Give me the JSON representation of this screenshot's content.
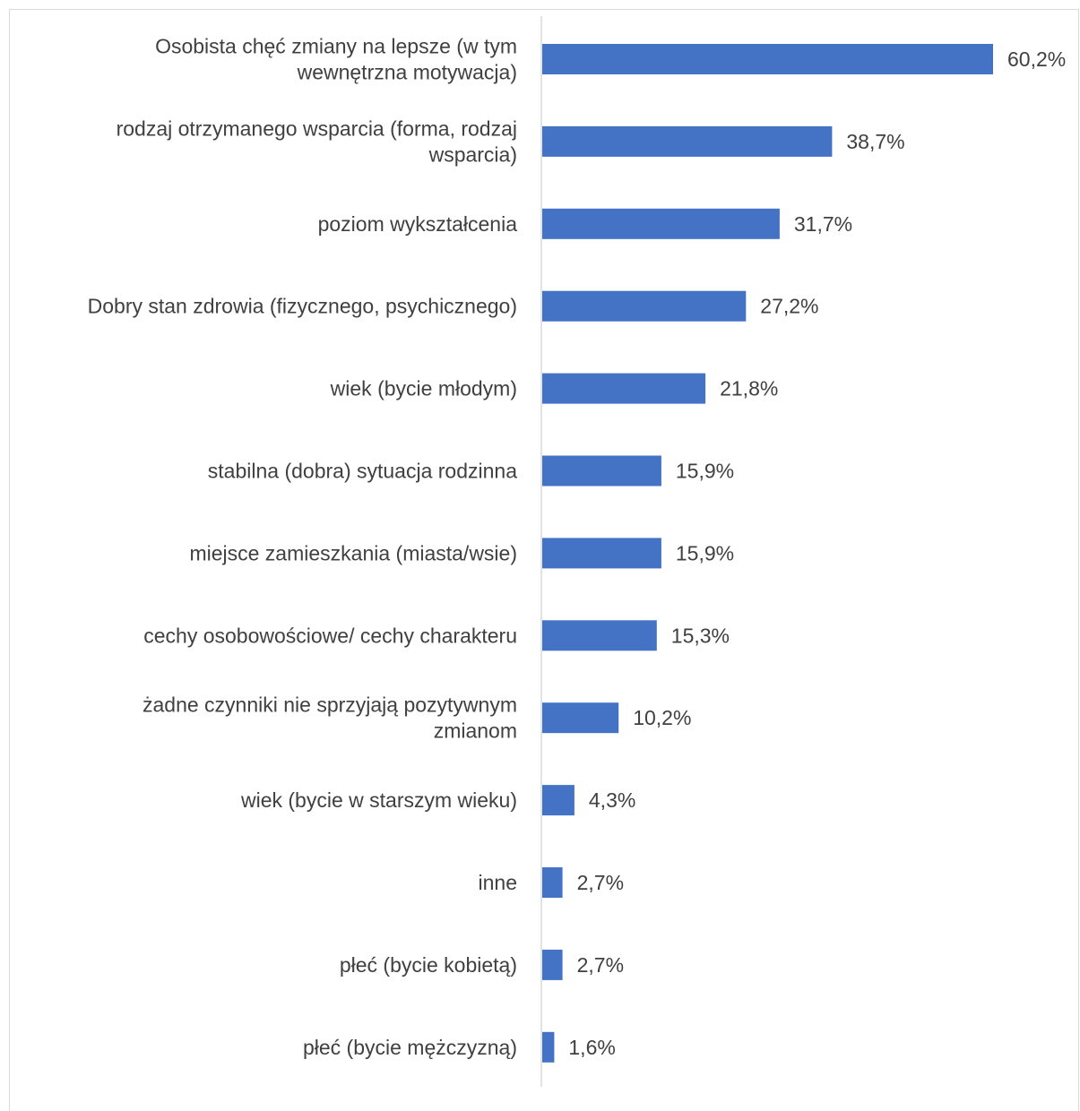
{
  "chart_data": {
    "type": "bar",
    "orientation": "horizontal",
    "categories": [
      "Osobista chęć zmiany na lepsze (w tym wewnętrzna motywacja)",
      "rodzaj otrzymanego wsparcia (forma, rodzaj wsparcia)",
      "poziom wykształcenia",
      "Dobry stan zdrowia (fizycznego, psychicznego)",
      "wiek (bycie młodym)",
      "stabilna (dobra) sytuacja rodzinna",
      "miejsce zamieszkania (miasta/wsie)",
      "cechy osobowościowe/ cechy charakteru",
      "żadne czynniki nie sprzyjają pozytywnym zmianom",
      "wiek (bycie w starszym wieku)",
      "inne",
      "płeć (bycie kobietą)",
      "płeć (bycie mężczyzną)"
    ],
    "category_lines": [
      [
        "Osobista chęć zmiany na lepsze (w tym",
        "wewnętrzna motywacja)"
      ],
      [
        "rodzaj otrzymanego wsparcia (forma, rodzaj",
        "wsparcia)"
      ],
      [
        "poziom wykształcenia"
      ],
      [
        "Dobry stan zdrowia (fizycznego, psychicznego)"
      ],
      [
        "wiek (bycie młodym)"
      ],
      [
        "stabilna (dobra) sytuacja rodzinna"
      ],
      [
        "miejsce zamieszkania (miasta/wsie)"
      ],
      [
        "cechy osobowościowe/ cechy charakteru"
      ],
      [
        "żadne czynniki nie sprzyjają pozytywnym",
        "zmianom"
      ],
      [
        "wiek (bycie w starszym wieku)"
      ],
      [
        "inne"
      ],
      [
        "płeć (bycie kobietą)"
      ],
      [
        "płeć (bycie mężczyzną)"
      ]
    ],
    "values": [
      60.2,
      38.7,
      31.7,
      27.2,
      21.8,
      15.9,
      15.9,
      15.3,
      10.2,
      4.3,
      2.7,
      2.7,
      1.6
    ],
    "value_labels": [
      "60,2%",
      "38,7%",
      "31,7%",
      "27,2%",
      "21,8%",
      "15,9%",
      "15,9%",
      "15,3%",
      "10,2%",
      "4,3%",
      "2,7%",
      "2,7%",
      "1,6%"
    ],
    "unit": "%",
    "xlim": [
      0,
      60.2
    ],
    "bar_color": "#4472c4",
    "axis_color": "#d9d9d9",
    "text_color": "#404040",
    "grid": false,
    "legend": "none"
  }
}
